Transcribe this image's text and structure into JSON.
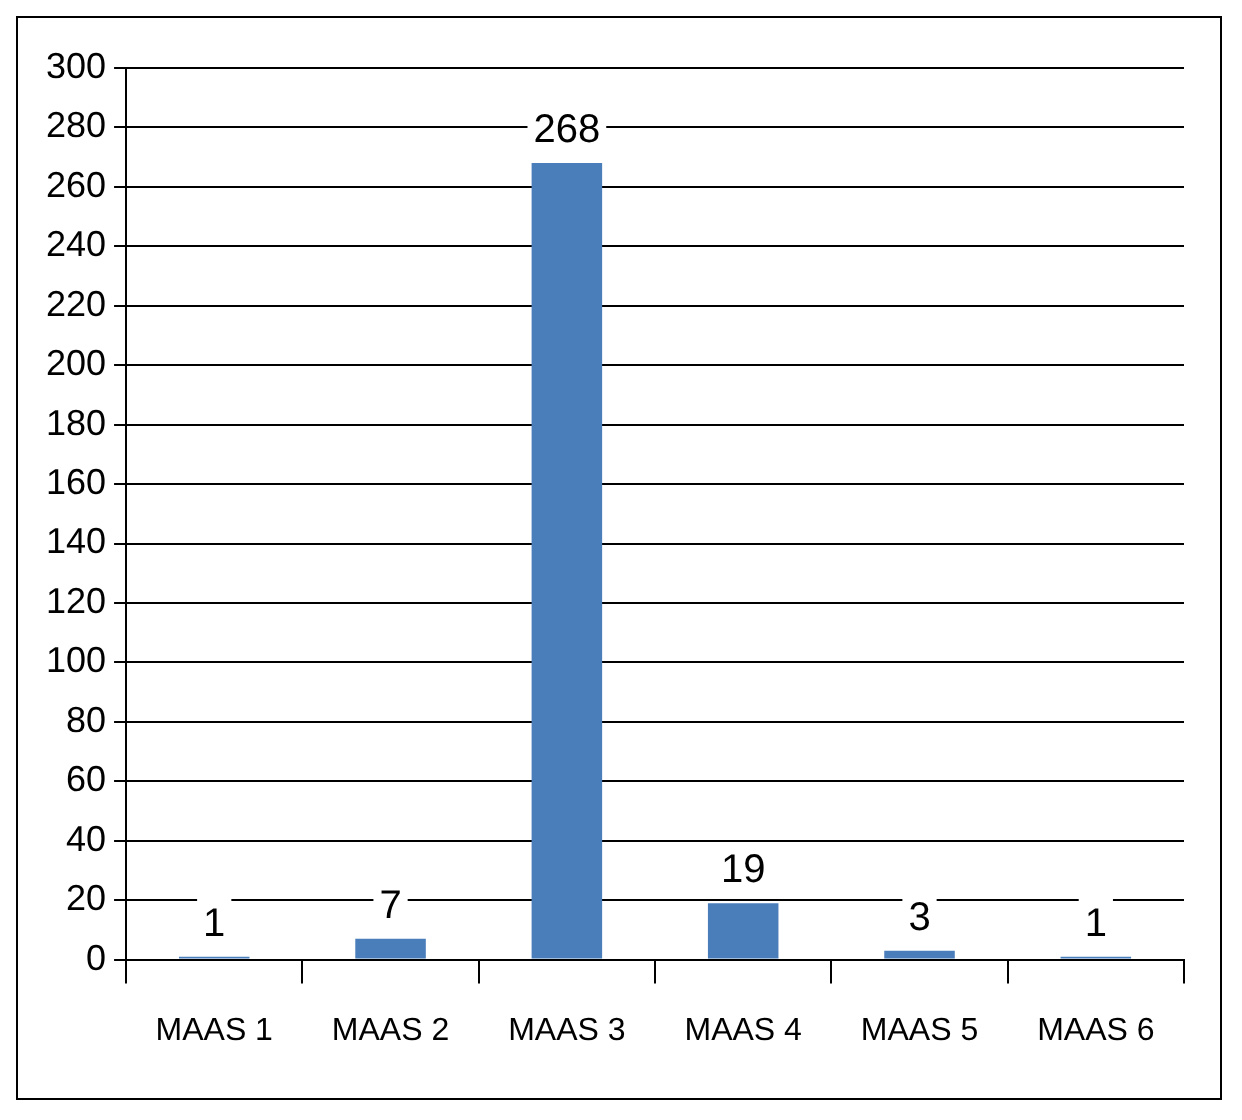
{
  "chart_data": {
    "type": "bar",
    "categories": [
      "MAAS 1",
      "MAAS 2",
      "MAAS 3",
      "MAAS 4",
      "MAAS 5",
      "MAAS 6"
    ],
    "values": [
      1,
      7,
      268,
      19,
      3,
      1
    ],
    "color": "#4a7ebb",
    "ylim": [
      0,
      300
    ],
    "yticks": [
      0,
      20,
      40,
      60,
      80,
      100,
      120,
      140,
      160,
      180,
      200,
      220,
      240,
      260,
      280,
      300
    ],
    "grid": "y",
    "legend": false,
    "data_labels": true
  }
}
